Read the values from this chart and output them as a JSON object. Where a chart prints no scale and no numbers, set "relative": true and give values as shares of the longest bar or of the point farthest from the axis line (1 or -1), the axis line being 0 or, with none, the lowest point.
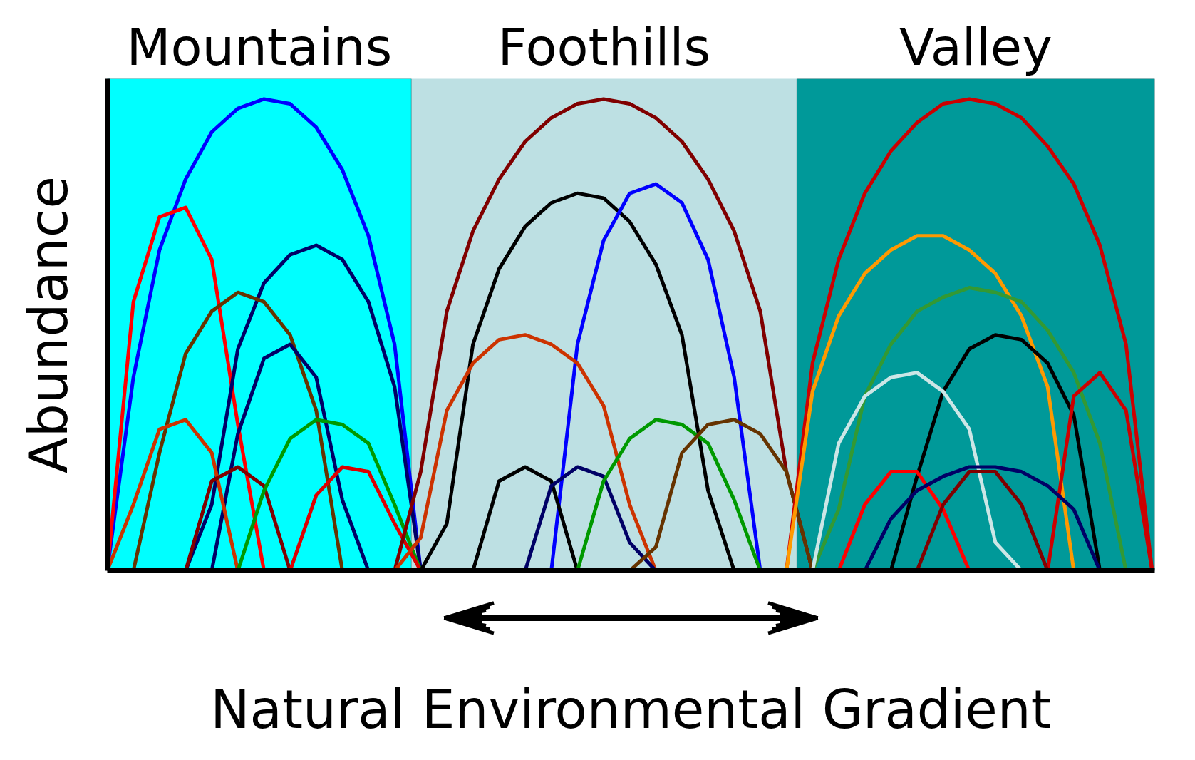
{
  "chart_data": {
    "type": "line",
    "relative": true,
    "xlabel": "Natural Environmental Gradient",
    "ylabel": "Abundance",
    "tick_labels": false,
    "line_style": "solid",
    "categories": [
      null,
      null,
      null,
      null,
      null,
      null,
      null,
      null,
      null,
      null,
      null,
      null,
      null,
      null,
      null,
      null,
      null,
      null,
      null,
      null,
      null,
      null,
      null,
      null,
      null,
      null,
      null,
      null,
      null,
      null,
      null,
      null,
      null,
      null,
      null,
      null,
      null,
      null,
      null,
      null,
      null
    ],
    "annotations": [
      "Mountains",
      "Foothills",
      "Valley"
    ],
    "series": [
      {
        "color": "#0000ff",
        "values": [
          0,
          0.41,
          0.68,
          0.83,
          0.93,
          0.98,
          1.0,
          0.99,
          0.94,
          0.85,
          0.71,
          0.48,
          0,
          null,
          null,
          null,
          null,
          null,
          null,
          null,
          null,
          null,
          null,
          null,
          null,
          null,
          null,
          null,
          null,
          null,
          null,
          null,
          null,
          null,
          null,
          null,
          null,
          null,
          null,
          null,
          null
        ]
      },
      {
        "color": "#ff0000",
        "values": [
          0,
          0.57,
          0.75,
          0.77,
          0.66,
          0.31,
          0,
          null,
          null,
          null,
          null,
          null,
          null,
          null,
          null,
          null,
          null,
          null,
          null,
          null,
          null,
          null,
          null,
          null,
          null,
          null,
          null,
          null,
          null,
          null,
          null,
          null,
          null,
          null,
          null,
          null,
          null,
          null,
          null,
          null,
          null
        ]
      },
      {
        "color": "#000066",
        "values": [
          null,
          null,
          null,
          0,
          0.14,
          0.47,
          0.61,
          0.67,
          0.69,
          0.66,
          0.57,
          0.39,
          0,
          null,
          null,
          null,
          null,
          null,
          null,
          null,
          null,
          null,
          null,
          null,
          null,
          null,
          null,
          null,
          null,
          null,
          null,
          null,
          null,
          null,
          null,
          null,
          null,
          null,
          null,
          null,
          null
        ]
      },
      {
        "color": "#663300",
        "values": [
          null,
          0,
          0.25,
          0.46,
          0.55,
          0.59,
          0.57,
          0.5,
          0.34,
          0,
          null,
          null,
          null,
          null,
          null,
          null,
          null,
          null,
          null,
          null,
          null,
          null,
          null,
          null,
          null,
          null,
          null,
          null,
          null,
          null,
          null,
          null,
          null,
          null,
          null,
          null,
          null,
          null,
          null,
          null,
          null
        ]
      },
      {
        "color": "#000066",
        "values": [
          null,
          null,
          null,
          null,
          0,
          0.29,
          0.45,
          0.48,
          0.41,
          0.15,
          0,
          null,
          null,
          null,
          null,
          null,
          null,
          null,
          null,
          null,
          null,
          null,
          null,
          null,
          null,
          null,
          null,
          null,
          null,
          null,
          null,
          null,
          null,
          null,
          null,
          null,
          null,
          null,
          null,
          null,
          null
        ]
      },
      {
        "color": "#cc3300",
        "values": [
          0,
          0.14,
          0.3,
          0.32,
          0.25,
          0,
          null,
          null,
          null,
          null,
          null,
          null,
          null,
          null,
          null,
          null,
          null,
          null,
          null,
          null,
          null,
          null,
          null,
          null,
          null,
          null,
          null,
          null,
          null,
          null,
          null,
          null,
          null,
          null,
          null,
          null,
          null,
          null,
          null,
          null,
          null
        ]
      },
      {
        "color": "#800000",
        "values": [
          null,
          null,
          null,
          0,
          0.19,
          0.22,
          0.18,
          0,
          null,
          null,
          null,
          null,
          null,
          null,
          null,
          null,
          null,
          null,
          null,
          null,
          null,
          null,
          null,
          null,
          null,
          null,
          null,
          null,
          null,
          null,
          null,
          null,
          null,
          null,
          null,
          null,
          null,
          null,
          null,
          null,
          null
        ]
      },
      {
        "color": "#009900",
        "values": [
          null,
          null,
          null,
          null,
          null,
          0,
          0.17,
          0.28,
          0.32,
          0.31,
          0.27,
          0.14,
          0,
          null,
          null,
          null,
          null,
          null,
          null,
          null,
          null,
          null,
          null,
          null,
          null,
          null,
          null,
          null,
          null,
          null,
          null,
          null,
          null,
          null,
          null,
          null,
          null,
          null,
          null,
          null,
          null
        ]
      },
      {
        "color": "#dd0000",
        "values": [
          null,
          null,
          null,
          null,
          null,
          null,
          null,
          0,
          0.16,
          0.22,
          0.21,
          0.1,
          0,
          null,
          null,
          null,
          null,
          null,
          null,
          null,
          null,
          null,
          null,
          null,
          null,
          null,
          null,
          null,
          null,
          null,
          null,
          null,
          null,
          null,
          null,
          null,
          null,
          null,
          null,
          null,
          null
        ]
      },
      {
        "color": "#800000",
        "values": [
          null,
          null,
          null,
          null,
          null,
          null,
          null,
          null,
          null,
          null,
          null,
          0,
          0.21,
          0.55,
          0.72,
          0.83,
          0.91,
          0.96,
          0.99,
          1.0,
          0.99,
          0.96,
          0.91,
          0.83,
          0.72,
          0.55,
          0.21,
          0,
          null,
          null,
          null,
          null,
          null,
          null,
          null,
          null,
          null,
          null,
          null,
          null,
          null
        ]
      },
      {
        "color": "#000000",
        "values": [
          null,
          null,
          null,
          null,
          null,
          null,
          null,
          null,
          null,
          null,
          null,
          null,
          0,
          0.1,
          0.48,
          0.64,
          0.73,
          0.78,
          0.8,
          0.79,
          0.74,
          0.65,
          0.5,
          0.17,
          0,
          null,
          null,
          null,
          null,
          null,
          null,
          null,
          null,
          null,
          null,
          null,
          null,
          null,
          null,
          null,
          null
        ]
      },
      {
        "color": "#0000ff",
        "values": [
          null,
          null,
          null,
          null,
          null,
          null,
          null,
          null,
          null,
          null,
          null,
          null,
          null,
          null,
          null,
          null,
          null,
          0,
          0.48,
          0.7,
          0.8,
          0.82,
          0.78,
          0.66,
          0.41,
          0,
          null,
          null,
          null,
          null,
          null,
          null,
          null,
          null,
          null,
          null,
          null,
          null,
          null,
          null,
          null
        ]
      },
      {
        "color": "#cc3300",
        "values": [
          null,
          null,
          null,
          null,
          null,
          null,
          null,
          null,
          null,
          null,
          null,
          0,
          0.07,
          0.34,
          0.44,
          0.49,
          0.5,
          0.48,
          0.44,
          0.35,
          0.14,
          0,
          null,
          null,
          null,
          null,
          null,
          null,
          null,
          null,
          null,
          null,
          null,
          null,
          null,
          null,
          null,
          null,
          null,
          null,
          null
        ]
      },
      {
        "color": "#000000",
        "values": [
          null,
          null,
          null,
          null,
          null,
          null,
          null,
          null,
          null,
          null,
          null,
          null,
          null,
          null,
          0,
          0.19,
          0.22,
          0.19,
          0,
          null,
          null,
          null,
          null,
          null,
          null,
          null,
          null,
          null,
          null,
          null,
          null,
          null,
          null,
          null,
          null,
          null,
          null,
          null,
          null,
          null,
          null
        ]
      },
      {
        "color": "#000066",
        "values": [
          null,
          null,
          null,
          null,
          null,
          null,
          null,
          null,
          null,
          null,
          null,
          null,
          null,
          null,
          null,
          null,
          0,
          0.18,
          0.22,
          0.2,
          0.06,
          0,
          null,
          null,
          null,
          null,
          null,
          null,
          null,
          null,
          null,
          null,
          null,
          null,
          null,
          null,
          null,
          null,
          null,
          null,
          null
        ]
      },
      {
        "color": "#009900",
        "values": [
          null,
          null,
          null,
          null,
          null,
          null,
          null,
          null,
          null,
          null,
          null,
          null,
          null,
          null,
          null,
          null,
          null,
          null,
          0,
          0.19,
          0.28,
          0.32,
          0.31,
          0.27,
          0.15,
          0,
          null,
          null,
          null,
          null,
          null,
          null,
          null,
          null,
          null,
          null,
          null,
          null,
          null,
          null,
          null
        ]
      },
      {
        "color": "#663300",
        "values": [
          null,
          null,
          null,
          null,
          null,
          null,
          null,
          null,
          null,
          null,
          null,
          null,
          null,
          null,
          null,
          null,
          null,
          null,
          null,
          null,
          0,
          0.05,
          0.25,
          0.31,
          0.32,
          0.29,
          0.21,
          0,
          null,
          null,
          null,
          null,
          null,
          null,
          null,
          null,
          null,
          null,
          null,
          null,
          null
        ]
      },
      {
        "color": "#cc0000",
        "values": [
          null,
          null,
          null,
          null,
          null,
          null,
          null,
          null,
          null,
          null,
          null,
          null,
          null,
          null,
          null,
          null,
          null,
          null,
          null,
          null,
          null,
          null,
          null,
          null,
          null,
          null,
          0,
          0.44,
          0.66,
          0.8,
          0.89,
          0.95,
          0.99,
          1.0,
          0.99,
          0.96,
          0.9,
          0.82,
          0.69,
          0.48,
          0
        ]
      },
      {
        "color": "#ff9900",
        "values": [
          null,
          null,
          null,
          null,
          null,
          null,
          null,
          null,
          null,
          null,
          null,
          null,
          null,
          null,
          null,
          null,
          null,
          null,
          null,
          null,
          null,
          null,
          null,
          null,
          null,
          null,
          0,
          0.38,
          0.54,
          0.63,
          0.68,
          0.71,
          0.71,
          0.68,
          0.63,
          0.54,
          0.39,
          0,
          null,
          null,
          null
        ]
      },
      {
        "color": "#339933",
        "values": [
          null,
          null,
          null,
          null,
          null,
          null,
          null,
          null,
          null,
          null,
          null,
          null,
          null,
          null,
          null,
          null,
          null,
          null,
          null,
          null,
          null,
          null,
          null,
          null,
          null,
          null,
          null,
          0,
          0.13,
          0.37,
          0.48,
          0.55,
          0.58,
          0.6,
          0.59,
          0.57,
          0.51,
          0.42,
          0.27,
          0,
          null
        ]
      },
      {
        "color": "#000000",
        "values": [
          null,
          null,
          null,
          null,
          null,
          null,
          null,
          null,
          null,
          null,
          null,
          null,
          null,
          null,
          null,
          null,
          null,
          null,
          null,
          null,
          null,
          null,
          null,
          null,
          null,
          null,
          null,
          null,
          null,
          null,
          0,
          0.2,
          0.38,
          0.47,
          0.5,
          0.49,
          0.44,
          0.33,
          0,
          null,
          null
        ]
      },
      {
        "color": "#cce6e6",
        "values": [
          null,
          null,
          null,
          null,
          null,
          null,
          null,
          null,
          null,
          null,
          null,
          null,
          null,
          null,
          null,
          null,
          null,
          null,
          null,
          null,
          null,
          null,
          null,
          null,
          null,
          null,
          null,
          0,
          0.27,
          0.37,
          0.41,
          0.42,
          0.38,
          0.3,
          0.06,
          0,
          null,
          null,
          null,
          null,
          null
        ]
      },
      {
        "color": "#cc0000",
        "values": [
          null,
          null,
          null,
          null,
          null,
          null,
          null,
          null,
          null,
          null,
          null,
          null,
          null,
          null,
          null,
          null,
          null,
          null,
          null,
          null,
          null,
          null,
          null,
          null,
          null,
          null,
          null,
          null,
          null,
          null,
          null,
          null,
          null,
          null,
          null,
          null,
          0,
          0.37,
          0.42,
          0.34,
          0
        ]
      },
      {
        "color": "#ff0000",
        "values": [
          null,
          null,
          null,
          null,
          null,
          null,
          null,
          null,
          null,
          null,
          null,
          null,
          null,
          null,
          null,
          null,
          null,
          null,
          null,
          null,
          null,
          null,
          null,
          null,
          null,
          null,
          null,
          null,
          0,
          0.14,
          0.21,
          0.21,
          0.13,
          0,
          null,
          null,
          null,
          null,
          null,
          null,
          null
        ]
      },
      {
        "color": "#000066",
        "values": [
          null,
          null,
          null,
          null,
          null,
          null,
          null,
          null,
          null,
          null,
          null,
          null,
          null,
          null,
          null,
          null,
          null,
          null,
          null,
          null,
          null,
          null,
          null,
          null,
          null,
          null,
          null,
          null,
          null,
          0,
          0.11,
          0.17,
          0.2,
          0.22,
          0.22,
          0.21,
          0.18,
          0.13,
          0,
          null,
          null
        ]
      },
      {
        "color": "#800000",
        "values": [
          null,
          null,
          null,
          null,
          null,
          null,
          null,
          null,
          null,
          null,
          null,
          null,
          null,
          null,
          null,
          null,
          null,
          null,
          null,
          null,
          null,
          null,
          null,
          null,
          null,
          null,
          null,
          null,
          null,
          null,
          null,
          0,
          0.14,
          0.21,
          0.21,
          0.14,
          0,
          null,
          null,
          null,
          null
        ]
      }
    ]
  }
}
